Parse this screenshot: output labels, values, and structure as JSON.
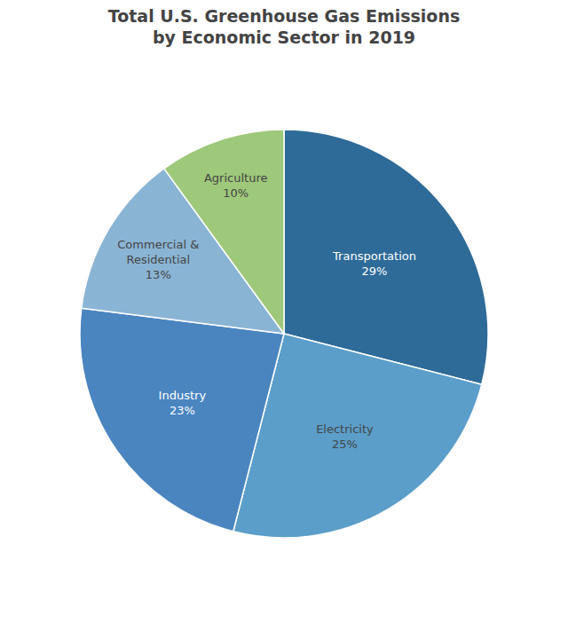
{
  "chart_data": {
    "type": "pie",
    "title": "Total U.S. Greenhouse Gas Emissions",
    "subtitle": "by Economic Sector in 2019",
    "categories": [
      "Transportation",
      "Electricity",
      "Industry",
      "Commercial &\nResidential",
      "Agriculture"
    ],
    "values": [
      29,
      25,
      23,
      13,
      10
    ],
    "value_labels": [
      "29%",
      "25%",
      "23%",
      "13%",
      "10%"
    ],
    "colors": [
      "#2e6b99",
      "#5b9ec9",
      "#4a85c0",
      "#8ab4d4",
      "#9ec87a"
    ],
    "data_labels": true
  }
}
